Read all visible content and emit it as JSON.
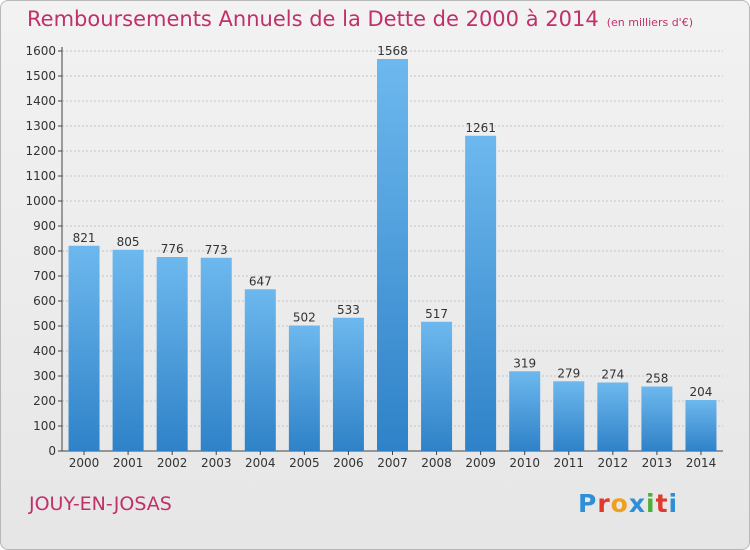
{
  "header": {
    "title": "Remboursements Annuels de la Dette de 2000 à 2014",
    "unit": "(en milliers d'€)"
  },
  "footer": {
    "place": "JOUY-EN-JOSAS",
    "logo_letters": [
      "P",
      "r",
      "o",
      "x",
      "i",
      "t",
      "i"
    ],
    "logo_colors": [
      "#2e8fd6",
      "#e03a2e",
      "#f0a020",
      "#2e8fd6",
      "#4caf3a",
      "#e03a2e",
      "#2e8fd6"
    ]
  },
  "colors": {
    "bar_light": "#6db8ee",
    "bar_dark": "#2f82c8",
    "grid": "#c4c4c4",
    "axis": "#444444",
    "text": "#333333",
    "accent": "#c0306a"
  },
  "chart_data": {
    "type": "bar",
    "title": "Remboursements Annuels de la Dette de 2000 à 2014",
    "xlabel": "",
    "ylabel": "",
    "categories": [
      "2000",
      "2001",
      "2002",
      "2003",
      "2004",
      "2005",
      "2006",
      "2007",
      "2008",
      "2009",
      "2010",
      "2011",
      "2012",
      "2013",
      "2014"
    ],
    "values": [
      821,
      805,
      776,
      773,
      647,
      502,
      533,
      1568,
      517,
      1261,
      319,
      279,
      274,
      258,
      204
    ],
    "ylim": [
      0,
      1600
    ],
    "yticks": [
      0,
      100,
      200,
      300,
      400,
      500,
      600,
      700,
      800,
      900,
      1000,
      1100,
      1200,
      1300,
      1400,
      1500,
      1600
    ],
    "grid": true,
    "legend": "none"
  }
}
